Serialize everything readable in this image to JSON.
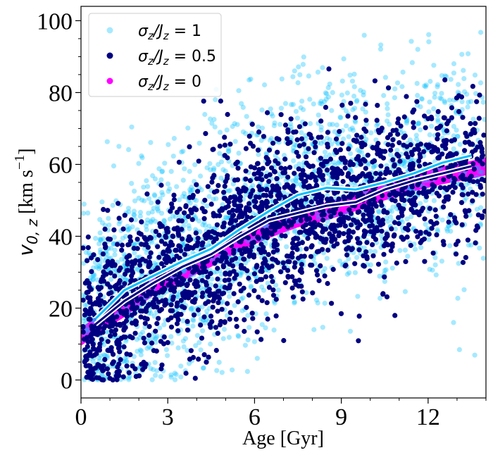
{
  "chart_data": {
    "type": "scatter",
    "title": "",
    "xlabel": "Age [Gyr]",
    "ylabel_parts": {
      "v": "v",
      "sub": "0, z",
      "unit_open": " [km s",
      "unit_exp": "−1",
      "unit_close": "]"
    },
    "xlim": [
      0,
      14
    ],
    "ylim": [
      -5,
      104
    ],
    "xticks": [
      0,
      3,
      6,
      9,
      12
    ],
    "xtick_labels": [
      "0",
      "3",
      "6",
      "9",
      "12"
    ],
    "yticks": [
      0,
      20,
      40,
      60,
      80,
      100
    ],
    "ytick_labels": [
      "0",
      "20",
      "40",
      "60",
      "80",
      "100"
    ],
    "legend_position": "top-left",
    "legend": [
      {
        "name": "σz/Jz = 1",
        "label_main": "σ",
        "label_sub1": "z",
        "label_mid": "/J",
        "label_sub2": "z",
        "label_tail": " = 1",
        "color": "#00bfff",
        "alpha": 0.35
      },
      {
        "name": "σz/Jz = 0.5",
        "label_main": "σ",
        "label_sub1": "z",
        "label_mid": "/J",
        "label_sub2": "z",
        "label_tail": " = 0.5",
        "color": "#000080",
        "alpha": 1.0
      },
      {
        "name": "σz/Jz = 0",
        "label_main": "σ",
        "label_sub1": "z",
        "label_mid": "/J",
        "label_sub2": "z",
        "label_tail": " = 0",
        "color": "#ff00ff",
        "alpha": 1.0
      }
    ],
    "series": [
      {
        "name": "σz/Jz = 1",
        "color": "#00bfff",
        "scatter_model": {
          "n_points": 2000,
          "mean_x": [
            0,
            0.5,
            1.5,
            2.5,
            3.5,
            4.5,
            5.5,
            6.5,
            7.5,
            8.5,
            9.5,
            10.5,
            11.5,
            12.5,
            13.5,
            14
          ],
          "mean_y": [
            14,
            17,
            25,
            29,
            33,
            36.5,
            42,
            47,
            51.5,
            53.5,
            53,
            55,
            57.5,
            60.5,
            62.5,
            63
          ],
          "spread": 16
        },
        "mean_line": {
          "x": [
            0.5,
            1.5,
            2.5,
            3.5,
            4.5,
            5.5,
            6.5,
            7.5,
            8.5,
            9.5,
            10.5,
            11.5,
            12.5,
            13.5
          ],
          "y": [
            17,
            25,
            29,
            33,
            36.5,
            42,
            47,
            51.5,
            53.5,
            53,
            55,
            57.5,
            60.5,
            62.5
          ]
        }
      },
      {
        "name": "σz/Jz = 0.5",
        "color": "#000080",
        "scatter_model": {
          "n_points": 2100,
          "mean_x": [
            0,
            0.5,
            1.5,
            2.5,
            3.5,
            4.5,
            5.5,
            6.5,
            7.5,
            8.5,
            9.5,
            10.5,
            11.5,
            12.5,
            13.5,
            14
          ],
          "mean_y": [
            12,
            15.5,
            22,
            27,
            31.5,
            35,
            40,
            44.5,
            46.5,
            48.5,
            49.5,
            53,
            55.5,
            57.5,
            59.5,
            61
          ],
          "spread": 11.5
        },
        "mean_line": {
          "x": [
            0.5,
            1.5,
            2.5,
            3.5,
            4.5,
            5.5,
            6.5,
            7.5,
            8.5,
            9.5,
            10.5,
            11.5,
            12.5,
            13.5
          ],
          "y": [
            15.5,
            22,
            27,
            31.5,
            35,
            40,
            44.5,
            46.5,
            48.5,
            49.5,
            53,
            55.5,
            57.5,
            59.5
          ]
        }
      },
      {
        "name": "σz/Jz = 0",
        "color": "#ff00ff",
        "band": {
          "x": [
            0,
            0.5,
            1.5,
            2.5,
            3.5,
            4.5,
            5.5,
            6.5,
            7.5,
            8.5,
            9.5,
            10.5,
            11.5,
            12.5,
            13.5,
            14
          ],
          "y": [
            12,
            15,
            20,
            26,
            30,
            34,
            38.5,
            42,
            45,
            47,
            49.5,
            52.5,
            55,
            57,
            58.5,
            59.5
          ],
          "width": 2.5
        }
      }
    ]
  }
}
